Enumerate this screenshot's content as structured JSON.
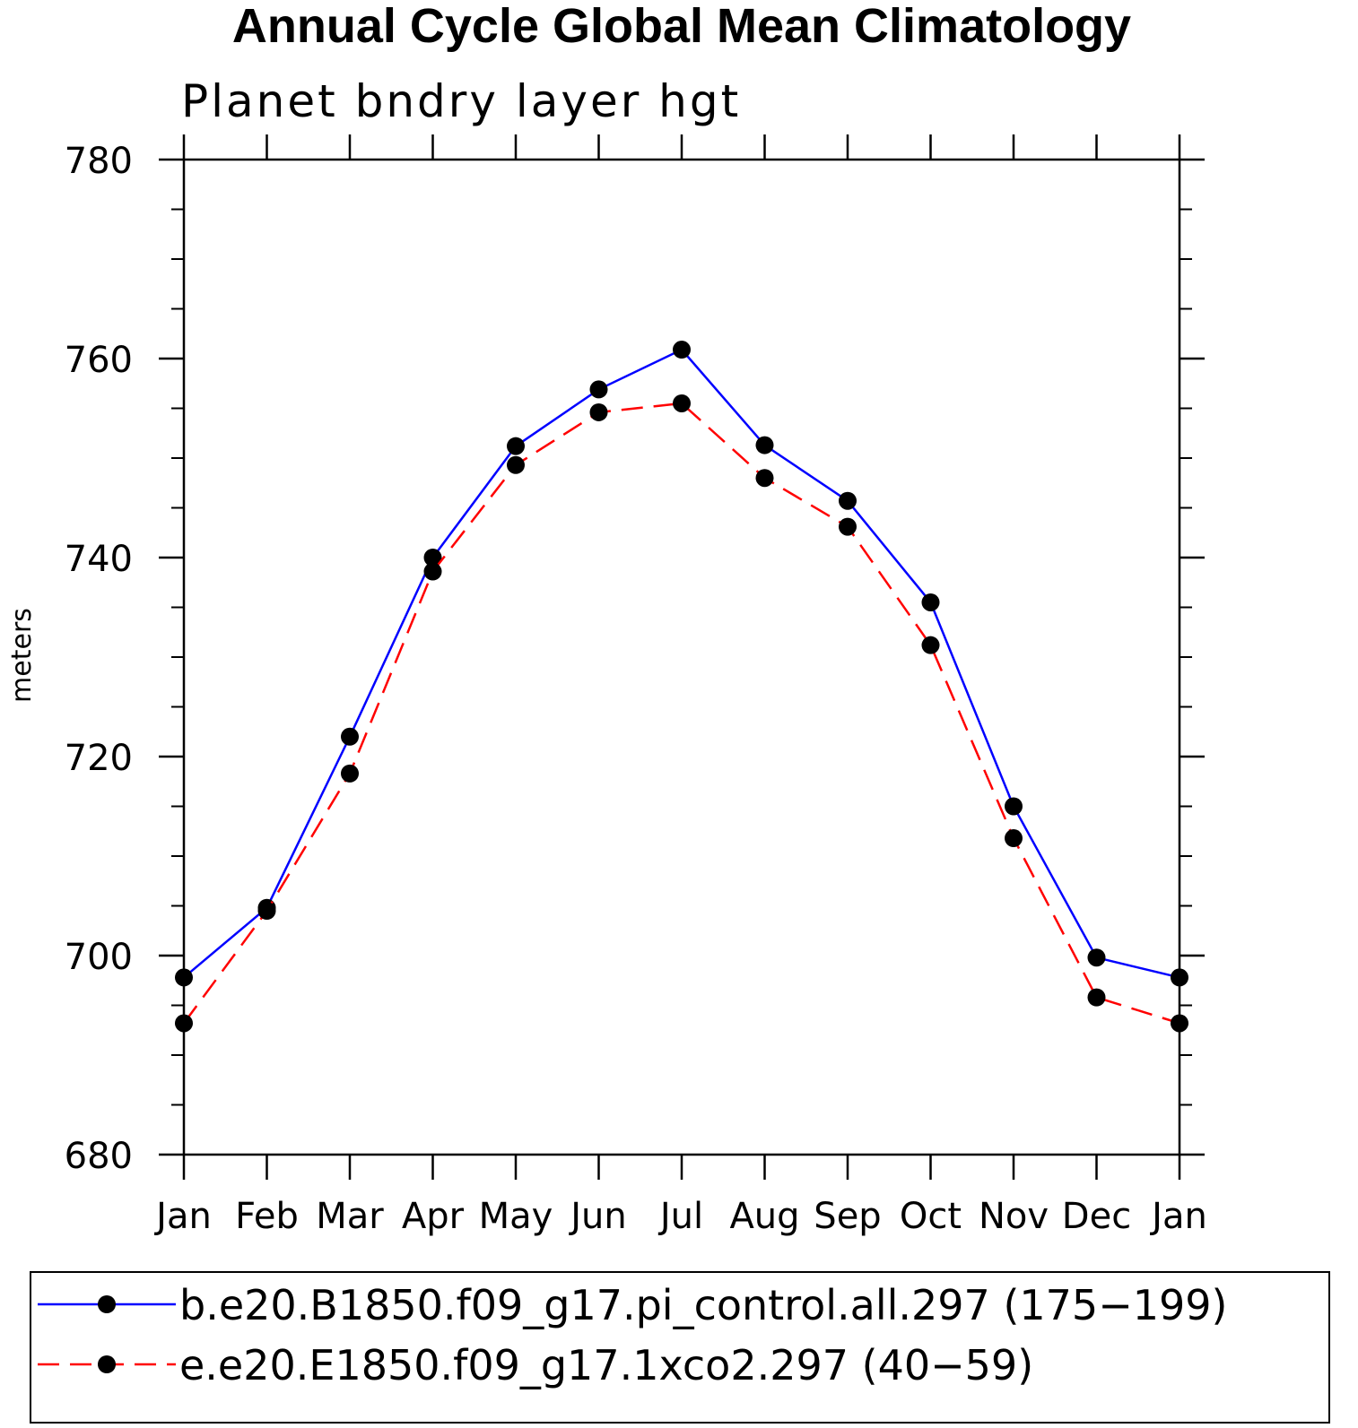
{
  "chart_data": {
    "type": "line",
    "title": "Annual Cycle Global Mean Climatology",
    "subtitle": "Planet bndry layer hgt",
    "ylabel": "meters",
    "xlabel": "",
    "categories": [
      "Jan",
      "Feb",
      "Mar",
      "Apr",
      "May",
      "Jun",
      "Jul",
      "Aug",
      "Sep",
      "Oct",
      "Nov",
      "Dec",
      "Jan"
    ],
    "ylim": [
      680,
      780
    ],
    "yticks": [
      680,
      700,
      720,
      740,
      760,
      780
    ],
    "ytick_labels": [
      "680",
      "700",
      "720",
      "740",
      "760",
      "780"
    ],
    "y_minor_step": 5,
    "legend_position": "bottom",
    "series": [
      {
        "name": "b.e20.B1850.f09_g17.pi_control.all.297 (175−199)",
        "color": "#0000ff",
        "line_style": "solid",
        "marker": "filled-circle",
        "values": [
          697.8,
          704.8,
          722.0,
          740.0,
          751.2,
          756.9,
          760.9,
          751.3,
          745.7,
          735.5,
          715.0,
          699.8,
          697.8
        ]
      },
      {
        "name": "e.e20.E1850.f09_g17.1xco2.297 (40−59)",
        "color": "#ff0000",
        "line_style": "dashed",
        "marker": "filled-circle",
        "values": [
          693.2,
          704.5,
          718.3,
          738.6,
          749.3,
          754.6,
          755.5,
          748.0,
          743.1,
          731.2,
          711.8,
          695.8,
          693.2
        ]
      }
    ]
  }
}
